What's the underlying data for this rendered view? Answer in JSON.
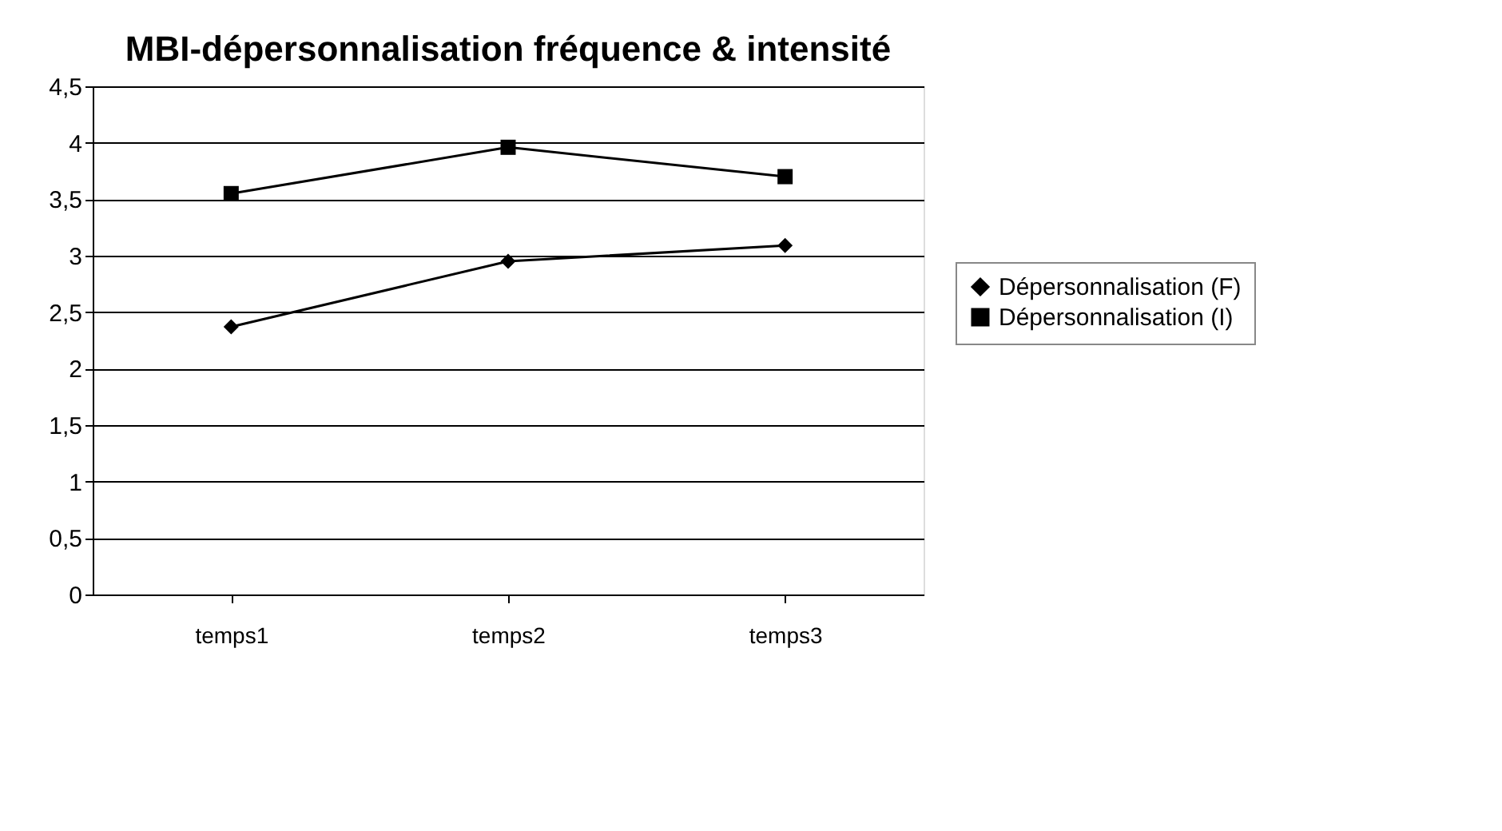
{
  "chart_data": {
    "type": "line",
    "title": "MBI-dépersonnalisation fréquence & intensité",
    "categories": [
      "temps1",
      "temps2",
      "temps3"
    ],
    "series": [
      {
        "name": "Dépersonnalisation (F)",
        "color": "#000000",
        "marker": "diamond",
        "values": [
          2.37,
          2.95,
          3.09
        ]
      },
      {
        "name": "Dépersonnalisation (I)",
        "color": "#000000",
        "marker": "square",
        "values": [
          3.55,
          3.96,
          3.7
        ]
      }
    ],
    "ylim": [
      0,
      4.5
    ],
    "yticks": [
      {
        "value": 0,
        "label": "0"
      },
      {
        "value": 0.5,
        "label": "0,5"
      },
      {
        "value": 1,
        "label": "1"
      },
      {
        "value": 1.5,
        "label": "1,5"
      },
      {
        "value": 2,
        "label": "2"
      },
      {
        "value": 2.5,
        "label": "2,5"
      },
      {
        "value": 3,
        "label": "3"
      },
      {
        "value": 3.5,
        "label": "3,5"
      },
      {
        "value": 4,
        "label": "4"
      },
      {
        "value": 4.5,
        "label": "4,5"
      }
    ],
    "grid": "y",
    "legend": "right"
  }
}
